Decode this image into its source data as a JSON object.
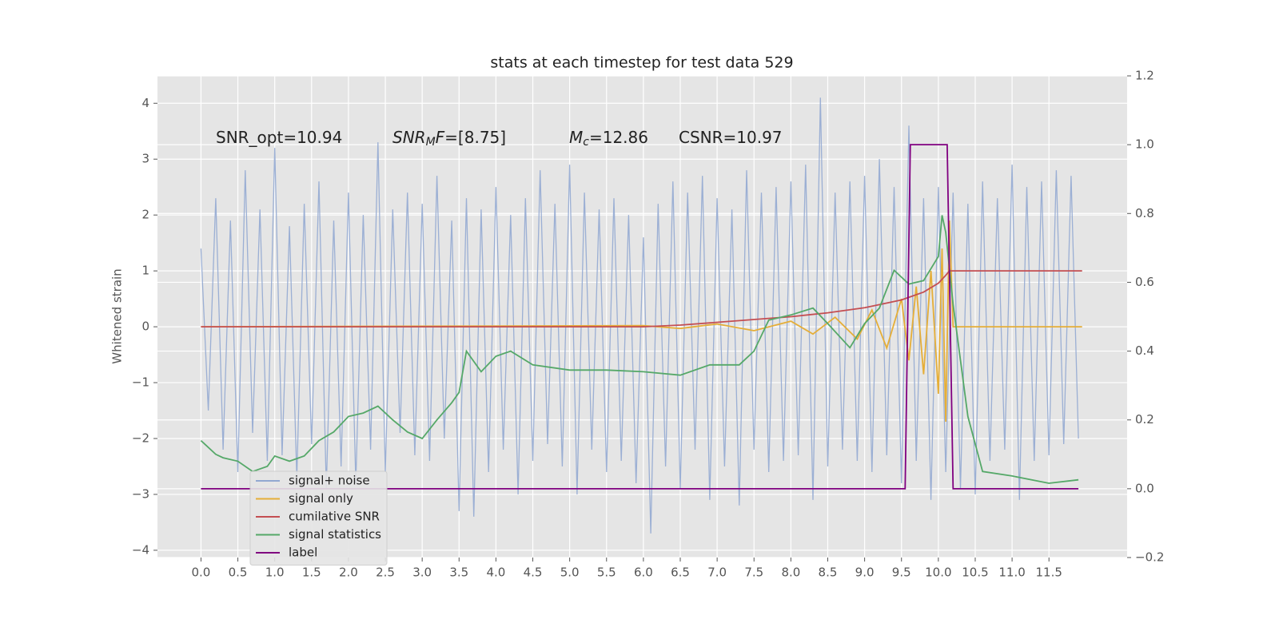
{
  "chart_data": {
    "type": "line",
    "title": "stats at each timestep for test data 529",
    "ylabel": "Whitened strain",
    "annotations": [
      [
        {
          "text": "SNR_opt=10.94"
        }
      ],
      [
        {
          "text": "SNR",
          "italic": true
        },
        {
          "text": "M",
          "italic": true,
          "sub": true
        },
        {
          "text": "F",
          "italic": true
        },
        {
          "text": "=[8.75]"
        }
      ],
      [
        {
          "text": "M",
          "italic": true
        },
        {
          "text": "c",
          "italic": true,
          "sub": true
        },
        {
          "text": "=12.86"
        }
      ],
      [
        {
          "text": "CSNR=10.97"
        }
      ]
    ],
    "xlim": [
      -0.59,
      12.56
    ],
    "xticks": [
      {
        "value": 0,
        "label": "0.0"
      },
      0.5,
      {
        "value": 1,
        "label": "1.0"
      },
      1.5,
      {
        "value": 2,
        "label": "2.0"
      },
      2.5,
      {
        "value": 3,
        "label": "3.0"
      },
      3.5,
      {
        "value": 4,
        "label": "4.0"
      },
      4.5,
      {
        "value": 5,
        "label": "5.0"
      },
      5.5,
      {
        "value": 6,
        "label": "6.0"
      },
      6.5,
      {
        "value": 7,
        "label": "7.0"
      },
      7.5,
      {
        "value": 8,
        "label": "8.0"
      },
      8.5,
      {
        "value": 9,
        "label": "9.0"
      },
      9.5,
      {
        "value": 10,
        "label": "10.0"
      },
      10.5,
      {
        "value": 11,
        "label": "11.0"
      },
      11.5
    ],
    "ylim": [
      -4.13,
      4.49
    ],
    "yticks": [
      {
        "value": -4,
        "label": "−4"
      },
      {
        "value": -3,
        "label": "−3"
      },
      {
        "value": -2,
        "label": "−2"
      },
      {
        "value": -1,
        "label": "−1"
      },
      0,
      1,
      2,
      3,
      4
    ],
    "y2lim": [
      -0.2,
      1.2
    ],
    "y2ticks": [
      {
        "value": -0.2,
        "label": "−0.2"
      },
      {
        "value": 0,
        "label": "0.0"
      },
      0.2,
      0.4,
      0.6,
      0.8,
      {
        "value": 1,
        "label": "1.0"
      },
      1.2
    ],
    "grid": true,
    "legend": "lower left",
    "series": [
      {
        "name": "signal+ noise",
        "color": "#92a8d1",
        "x": [
          0,
          0.1,
          0.2,
          0.3,
          0.4,
          0.5,
          0.6,
          0.7,
          0.8,
          0.9,
          1,
          1.1,
          1.2,
          1.3,
          1.4,
          1.5,
          1.6,
          1.7,
          1.8,
          1.9,
          2,
          2.1,
          2.2,
          2.3,
          2.4,
          2.5,
          2.6,
          2.7,
          2.8,
          2.9,
          3,
          3.1,
          3.2,
          3.3,
          3.4,
          3.5,
          3.6,
          3.7,
          3.8,
          3.9,
          4,
          4.1,
          4.2,
          4.3,
          4.4,
          4.5,
          4.6,
          4.7,
          4.8,
          4.9,
          5,
          5.1,
          5.2,
          5.3,
          5.4,
          5.5,
          5.6,
          5.7,
          5.8,
          5.9,
          6,
          6.1,
          6.2,
          6.3,
          6.4,
          6.5,
          6.6,
          6.7,
          6.8,
          6.9,
          7,
          7.1,
          7.2,
          7.3,
          7.4,
          7.5,
          7.6,
          7.7,
          7.8,
          7.9,
          8,
          8.1,
          8.2,
          8.3,
          8.4,
          8.5,
          8.6,
          8.7,
          8.8,
          8.9,
          9,
          9.1,
          9.2,
          9.3,
          9.4,
          9.5,
          9.6,
          9.7,
          9.8,
          9.9,
          10,
          10.1,
          10.2,
          10.3,
          10.4,
          10.5,
          10.6,
          10.7,
          10.8,
          10.9,
          11,
          11.1,
          11.2,
          11.3,
          11.4,
          11.5,
          11.6,
          11.7,
          11.8,
          11.9
        ],
        "values": [
          1.4,
          -1.5,
          2.3,
          -2.2,
          1.9,
          -2.6,
          2.8,
          -1.9,
          2.1,
          -2.4,
          3.2,
          -2.3,
          1.8,
          -2.7,
          2.2,
          -2.1,
          2.6,
          -2.9,
          1.9,
          -2.5,
          2.4,
          -2.8,
          2.0,
          -2.2,
          3.3,
          -2.6,
          2.1,
          -1.9,
          2.4,
          -2.3,
          2.2,
          -2.4,
          2.7,
          -2.0,
          1.9,
          -3.3,
          2.3,
          -3.4,
          2.1,
          -2.6,
          2.5,
          -2.2,
          2.0,
          -3.0,
          2.3,
          -2.4,
          2.8,
          -2.1,
          2.2,
          -2.5,
          2.9,
          -3.0,
          2.4,
          -2.2,
          2.1,
          -2.6,
          2.3,
          -2.4,
          2.0,
          -2.8,
          1.6,
          -3.7,
          2.2,
          -2.5,
          2.6,
          -2.9,
          2.4,
          -2.2,
          2.7,
          -3.1,
          2.3,
          -2.5,
          2.1,
          -3.2,
          2.8,
          -2.2,
          2.4,
          -2.6,
          2.5,
          -2.4,
          2.6,
          -2.3,
          2.9,
          -3.1,
          4.1,
          -2.5,
          2.4,
          -2.2,
          2.6,
          -2.4,
          2.7,
          -2.6,
          3.0,
          -2.3,
          2.5,
          -2.8,
          3.6,
          -2.4,
          2.3,
          -3.1,
          2.5,
          -2.6,
          2.4,
          -2.9,
          2.2,
          -3.0,
          2.6,
          -2.4,
          2.3,
          -2.2,
          2.9,
          -3.1,
          2.5,
          -2.4,
          2.6,
          -2.3,
          2.8,
          -2.1,
          2.7,
          -2.0
        ]
      },
      {
        "name": "signal only",
        "color": "#e5ae38",
        "x": [
          0,
          6,
          6.5,
          7,
          7.5,
          8,
          8.3,
          8.6,
          8.9,
          9.1,
          9.3,
          9.5,
          9.6,
          9.7,
          9.8,
          9.9,
          10,
          10.05,
          10.1,
          10.15,
          10.2,
          11.95
        ],
        "values": [
          0,
          0.02,
          -0.03,
          0.05,
          -0.07,
          0.1,
          -0.13,
          0.17,
          -0.22,
          0.3,
          -0.38,
          0.5,
          -0.6,
          0.72,
          -0.85,
          1.0,
          -1.2,
          1.4,
          -1.7,
          1.9,
          0,
          0
        ]
      },
      {
        "name": "cumilative SNR",
        "color": "#c44e52",
        "x": [
          0,
          6,
          6.5,
          7,
          7.5,
          8,
          8.5,
          9,
          9.5,
          9.8,
          10,
          10.1,
          10.15,
          11.95
        ],
        "values": [
          0,
          0,
          0.03,
          0.08,
          0.13,
          0.18,
          0.25,
          0.34,
          0.48,
          0.62,
          0.78,
          0.92,
          1.0,
          1.0
        ]
      },
      {
        "name": "signal statistics",
        "color": "#55a868",
        "axis": "y2",
        "x": [
          0,
          0.2,
          0.3,
          0.5,
          0.7,
          0.9,
          1,
          1.2,
          1.4,
          1.6,
          1.8,
          2,
          2.2,
          2.4,
          2.6,
          2.8,
          3,
          3.2,
          3.4,
          3.5,
          3.6,
          3.8,
          4,
          4.2,
          4.5,
          5,
          5.5,
          6,
          6.5,
          6.9,
          7.3,
          7.5,
          7.7,
          8,
          8.3,
          8.5,
          8.8,
          9,
          9.2,
          9.4,
          9.6,
          9.8,
          10,
          10.05,
          10.1,
          10.2,
          10.4,
          10.6,
          11,
          11.5,
          11.9
        ],
        "values": [
          0.14,
          0.1,
          0.09,
          0.08,
          0.05,
          0.065,
          0.095,
          0.08,
          0.095,
          0.14,
          0.165,
          0.21,
          0.22,
          0.24,
          0.2,
          0.165,
          0.146,
          0.2,
          0.25,
          0.28,
          0.4,
          0.34,
          0.385,
          0.4,
          0.36,
          0.345,
          0.345,
          0.34,
          0.33,
          0.36,
          0.36,
          0.4,
          0.49,
          0.505,
          0.525,
          0.48,
          0.41,
          0.48,
          0.525,
          0.635,
          0.595,
          0.605,
          0.675,
          0.795,
          0.745,
          0.536,
          0.21,
          0.05,
          0.037,
          0.016,
          0.026
        ]
      },
      {
        "name": "label",
        "color": "#800080",
        "axis": "y2",
        "x": [
          0,
          9.55,
          9.62,
          10.12,
          10.2,
          11.9
        ],
        "values": [
          0,
          0,
          1,
          1,
          0,
          0
        ]
      }
    ]
  }
}
